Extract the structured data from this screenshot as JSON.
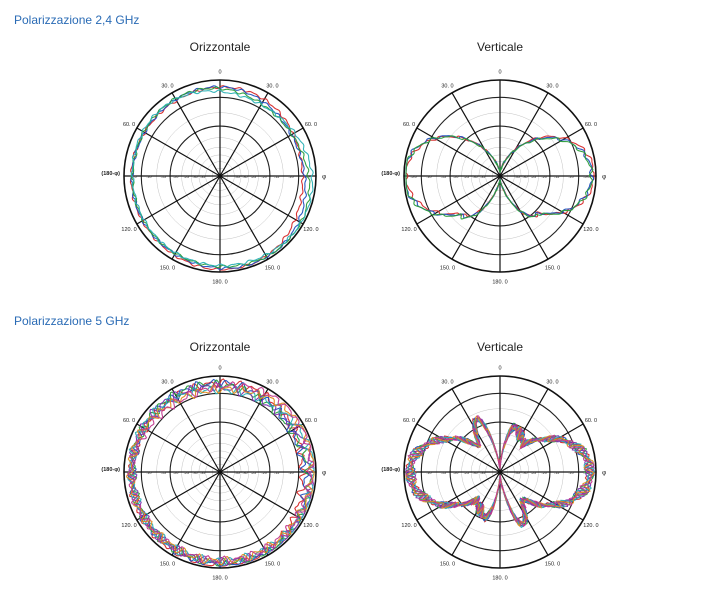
{
  "sections": [
    {
      "title": "Polarizzazione 2,4 GHz",
      "charts": [
        {
          "title": "Orizzontale",
          "kind": "horizontal",
          "noise": 0.01
        },
        {
          "title": "Verticale",
          "kind": "vertical24",
          "noise": 0.015
        }
      ]
    },
    {
      "title": "Polarizzazione 5 GHz",
      "charts": [
        {
          "title": "Orizzontale",
          "kind": "horizontal",
          "noise": 0.03
        },
        {
          "title": "Verticale",
          "kind": "vertical5",
          "noise": 0.04
        }
      ]
    }
  ],
  "chart_data": [
    {
      "type": "polar",
      "title": "Orizzontale",
      "group": "Polarizzazione 2,4 GHz",
      "angle_labels": [
        "0",
        "30. 0",
        "60. 0",
        "120. 0",
        "150. 0",
        "180. 0",
        "150. 0",
        "120. 0",
        "60. 0",
        "30. 0"
      ],
      "axis_labels": {
        "right": "φ",
        "left": "(180-φ)"
      },
      "radial_ticks": [
        "-5.0",
        "-10",
        "-15",
        "-20",
        "-25",
        "-30",
        "-35"
      ],
      "radial_range": [
        -35,
        5
      ],
      "series_colors": [
        "#d62828",
        "#1f4fbf",
        "#2a9d3a",
        "#2ab0b5"
      ],
      "pattern": "near-omnidirectional"
    },
    {
      "type": "polar",
      "title": "Verticale",
      "group": "Polarizzazione 2,4 GHz",
      "angle_labels": [
        "0",
        "30. 0",
        "60. 0",
        "120. 0",
        "150. 0",
        "180. 0",
        "150. 0",
        "120. 0",
        "60. 0",
        "30. 0"
      ],
      "axis_labels": {
        "right": "φ",
        "left": "(180-φ)"
      },
      "radial_ticks": [
        "-5.0",
        "-10",
        "-15",
        "-20",
        "-25",
        "-30",
        "-35"
      ],
      "radial_range": [
        -35,
        5
      ],
      "series_colors": [
        "#d62828",
        "#1f4fbf",
        "#2a9d3a"
      ],
      "pattern": "figure-eight"
    },
    {
      "type": "polar",
      "title": "Orizzontale",
      "group": "Polarizzazione 5 GHz",
      "angle_labels": [
        "0",
        "30. 0",
        "60. 0",
        "120. 0",
        "150. 0",
        "180. 0",
        "150. 0",
        "120. 0",
        "60. 0",
        "30. 0"
      ],
      "axis_labels": {
        "right": "φ",
        "left": "(180-φ)"
      },
      "radial_ticks": [
        "-5.0",
        "-10",
        "-15",
        "-20",
        "-25",
        "-30",
        "-35"
      ],
      "radial_range": [
        -35,
        5
      ],
      "series_colors": [
        "#d62828",
        "#1f4fbf",
        "#2a9d3a",
        "#7b2fb0",
        "#2ab0b5",
        "#e08a1e",
        "#c2398f"
      ],
      "pattern": "near-omnidirectional"
    },
    {
      "type": "polar",
      "title": "Verticale",
      "group": "Polarizzazione 5 GHz",
      "angle_labels": [
        "0",
        "30. 0",
        "60. 0",
        "120. 0",
        "150. 0",
        "180. 0",
        "150. 0",
        "120. 0",
        "60. 0",
        "30. 0"
      ],
      "axis_labels": {
        "right": "φ",
        "left": "(180-φ)"
      },
      "radial_ticks": [
        "-5.0",
        "-10",
        "-15",
        "-20",
        "-25",
        "-30",
        "-35"
      ],
      "radial_range": [
        -35,
        5
      ],
      "series_colors": [
        "#d62828",
        "#1f4fbf",
        "#2a9d3a",
        "#7b2fb0",
        "#2ab0b5",
        "#e08a1e",
        "#c2398f"
      ],
      "pattern": "figure-eight"
    }
  ]
}
